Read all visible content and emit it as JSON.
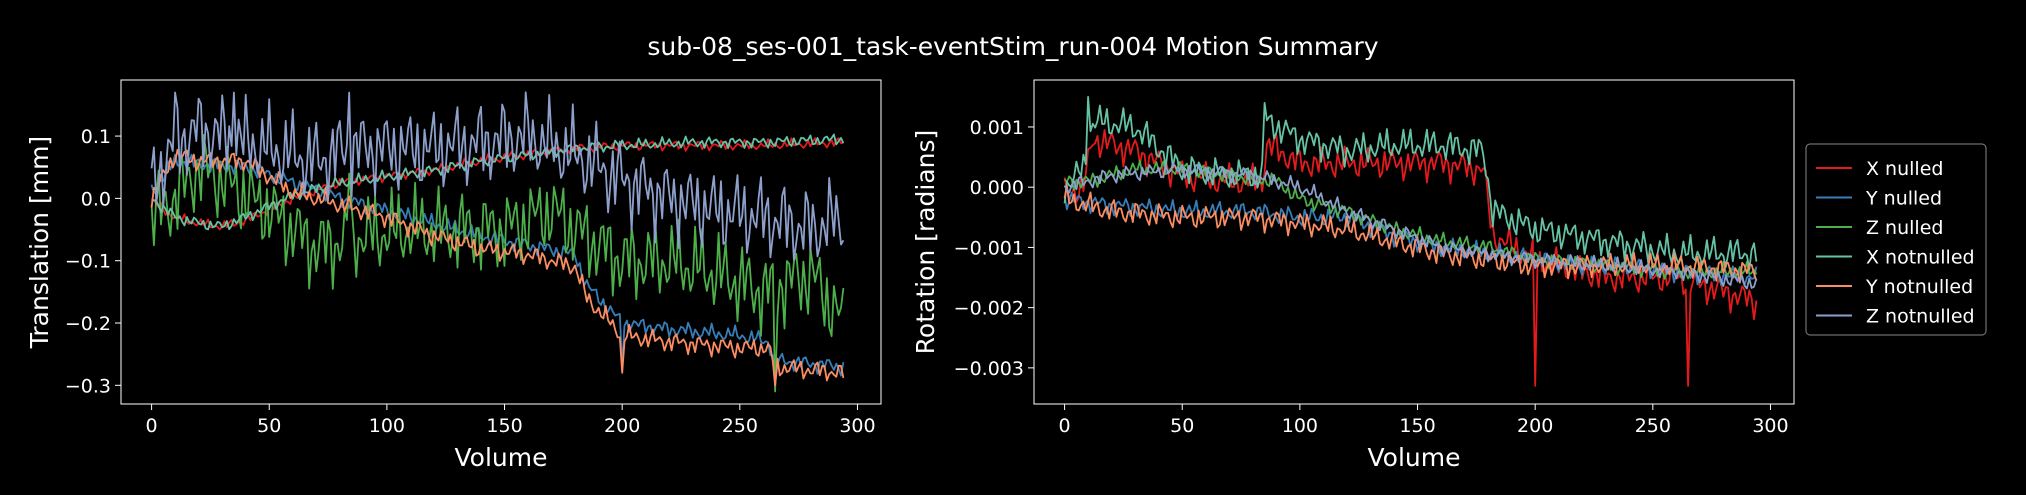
{
  "title": "sub-08_ses-001_task-eventStim_run-004 Motion Summary",
  "colors": {
    "background": "#000000",
    "axes": "#ffffff",
    "X nulled": "#e41a1c",
    "Y nulled": "#377eb8",
    "Z nulled": "#4daf4a",
    "X notnulled": "#66c2a5",
    "Y notnulled": "#fc8d62",
    "Z notnulled": "#8da0cb"
  },
  "legend": {
    "placement": "outside-right",
    "entries": [
      "X nulled",
      "Y nulled",
      "Z nulled",
      "X notnulled",
      "Y notnulled",
      "Z notnulled"
    ]
  },
  "chart_data": [
    {
      "type": "line",
      "xlabel": "Volume",
      "ylabel": "Translation [mm]",
      "xlim": [
        -13,
        310
      ],
      "ylim": [
        -0.33,
        0.19
      ],
      "xticks": [
        0,
        50,
        100,
        150,
        200,
        250,
        300
      ],
      "xtick_labels": [
        "0",
        "50",
        "100",
        "150",
        "200",
        "250",
        "300"
      ],
      "yticks": [
        0.1,
        0.0,
        -0.1,
        -0.2,
        -0.3
      ],
      "ytick_labels": [
        "0.1",
        "0.0",
        "−0.1",
        "−0.2",
        "−0.3"
      ],
      "n_volumes": 295,
      "grid": false,
      "series": [
        {
          "name": "X nulled",
          "color": "#e41a1c",
          "points": [
            [
              0,
              -0.005
            ],
            [
              10,
              -0.03
            ],
            [
              20,
              -0.04
            ],
            [
              30,
              -0.045
            ],
            [
              40,
              -0.035
            ],
            [
              60,
              0.0
            ],
            [
              80,
              0.025
            ],
            [
              100,
              0.035
            ],
            [
              120,
              0.045
            ],
            [
              140,
              0.06
            ],
            [
              160,
              0.07
            ],
            [
              180,
              0.08
            ],
            [
              200,
              0.085
            ],
            [
              230,
              0.085
            ],
            [
              260,
              0.085
            ],
            [
              294,
              0.09
            ]
          ],
          "amp": 0.006,
          "spikes": []
        },
        {
          "name": "Y nulled",
          "color": "#377eb8",
          "points": [
            [
              0,
              0.01
            ],
            [
              10,
              0.06
            ],
            [
              20,
              0.055
            ],
            [
              40,
              0.05
            ],
            [
              60,
              0.025
            ],
            [
              80,
              0.0
            ],
            [
              100,
              -0.02
            ],
            [
              120,
              -0.04
            ],
            [
              140,
              -0.06
            ],
            [
              160,
              -0.075
            ],
            [
              180,
              -0.09
            ],
            [
              185,
              -0.14
            ],
            [
              200,
              -0.2
            ],
            [
              220,
              -0.21
            ],
            [
              250,
              -0.22
            ],
            [
              262,
              -0.23
            ],
            [
              265,
              -0.26
            ],
            [
              294,
              -0.27
            ]
          ],
          "amp": 0.01,
          "spikes": [
            [
              200,
              -0.27
            ],
            [
              265,
              -0.3
            ]
          ]
        },
        {
          "name": "Z nulled",
          "color": "#4daf4a",
          "points": [
            [
              0,
              -0.03
            ],
            [
              10,
              0.0
            ],
            [
              20,
              0.05
            ],
            [
              30,
              0.03
            ],
            [
              50,
              -0.02
            ],
            [
              70,
              -0.08
            ],
            [
              90,
              -0.06
            ],
            [
              110,
              -0.05
            ],
            [
              130,
              -0.05
            ],
            [
              150,
              -0.05
            ],
            [
              170,
              -0.02
            ],
            [
              180,
              -0.05
            ],
            [
              200,
              -0.1
            ],
            [
              220,
              -0.1
            ],
            [
              240,
              -0.12
            ],
            [
              260,
              -0.15
            ],
            [
              280,
              -0.12
            ],
            [
              294,
              -0.2
            ]
          ],
          "amp": 0.05,
          "spikes": [
            [
              84,
              0.04
            ],
            [
              265,
              -0.31
            ]
          ]
        },
        {
          "name": "X notnulled",
          "color": "#66c2a5",
          "points": [
            [
              0,
              0.0
            ],
            [
              10,
              -0.03
            ],
            [
              20,
              -0.04
            ],
            [
              30,
              -0.045
            ],
            [
              40,
              -0.03
            ],
            [
              60,
              0.005
            ],
            [
              80,
              0.025
            ],
            [
              100,
              0.035
            ],
            [
              120,
              0.045
            ],
            [
              140,
              0.06
            ],
            [
              160,
              0.07
            ],
            [
              180,
              0.08
            ],
            [
              200,
              0.085
            ],
            [
              230,
              0.09
            ],
            [
              260,
              0.09
            ],
            [
              294,
              0.095
            ]
          ],
          "amp": 0.007,
          "spikes": []
        },
        {
          "name": "Y notnulled",
          "color": "#fc8d62",
          "points": [
            [
              0,
              0.0
            ],
            [
              10,
              0.07
            ],
            [
              20,
              0.06
            ],
            [
              40,
              0.06
            ],
            [
              60,
              0.01
            ],
            [
              80,
              -0.01
            ],
            [
              100,
              -0.03
            ],
            [
              120,
              -0.06
            ],
            [
              140,
              -0.08
            ],
            [
              160,
              -0.09
            ],
            [
              180,
              -0.11
            ],
            [
              185,
              -0.16
            ],
            [
              200,
              -0.22
            ],
            [
              220,
              -0.23
            ],
            [
              250,
              -0.24
            ],
            [
              262,
              -0.24
            ],
            [
              265,
              -0.27
            ],
            [
              294,
              -0.28
            ]
          ],
          "amp": 0.012,
          "spikes": [
            [
              200,
              -0.28
            ],
            [
              265,
              -0.3
            ]
          ]
        },
        {
          "name": "Z notnulled",
          "color": "#8da0cb",
          "points": [
            [
              0,
              0.02
            ],
            [
              10,
              0.09
            ],
            [
              20,
              0.11
            ],
            [
              30,
              0.1
            ],
            [
              50,
              0.08
            ],
            [
              70,
              0.06
            ],
            [
              84,
              0.08
            ],
            [
              100,
              0.08
            ],
            [
              120,
              0.08
            ],
            [
              140,
              0.09
            ],
            [
              160,
              0.1
            ],
            [
              180,
              0.07
            ],
            [
              200,
              0.03
            ],
            [
              220,
              0.0
            ],
            [
              240,
              -0.02
            ],
            [
              260,
              -0.03
            ],
            [
              280,
              -0.05
            ],
            [
              294,
              -0.03
            ]
          ],
          "amp": 0.05,
          "spikes": [
            [
              10,
              0.17
            ],
            [
              35,
              0.17
            ],
            [
              84,
              0.17
            ]
          ]
        }
      ]
    },
    {
      "type": "line",
      "xlabel": "Volume",
      "ylabel": "Rotation [radians]",
      "xlim": [
        -13,
        310
      ],
      "ylim": [
        -0.0036,
        0.00178
      ],
      "xticks": [
        0,
        50,
        100,
        150,
        200,
        250,
        300
      ],
      "xtick_labels": [
        "0",
        "50",
        "100",
        "150",
        "200",
        "250",
        "300"
      ],
      "yticks": [
        0.001,
        0.0,
        -0.001,
        -0.002,
        -0.003
      ],
      "ytick_labels": [
        "0.001",
        "0.000",
        "−0.001",
        "−0.002",
        "−0.003"
      ],
      "n_volumes": 295,
      "grid": false,
      "series": [
        {
          "name": "X nulled",
          "color": "#e41a1c",
          "points": [
            [
              0,
              -0.0001
            ],
            [
              8,
              0.0
            ],
            [
              12,
              0.0008
            ],
            [
              30,
              0.0006
            ],
            [
              50,
              0.0002
            ],
            [
              70,
              0.0001
            ],
            [
              84,
              0.0001
            ],
            [
              86,
              0.0007
            ],
            [
              100,
              0.0004
            ],
            [
              120,
              0.0004
            ],
            [
              140,
              0.0004
            ],
            [
              160,
              0.0004
            ],
            [
              178,
              0.0003
            ],
            [
              182,
              -0.0008
            ],
            [
              200,
              -0.0012
            ],
            [
              230,
              -0.0015
            ],
            [
              260,
              -0.0015
            ],
            [
              294,
              -0.0019
            ]
          ],
          "amp": 0.0002,
          "spikes": [
            [
              200,
              -0.0033
            ],
            [
              265,
              -0.0033
            ]
          ]
        },
        {
          "name": "Y nulled",
          "color": "#377eb8",
          "points": [
            [
              0,
              -0.0002
            ],
            [
              20,
              -0.0003
            ],
            [
              50,
              -0.0004
            ],
            [
              80,
              -0.0004
            ],
            [
              100,
              -0.0005
            ],
            [
              120,
              -0.0005
            ],
            [
              140,
              -0.0008
            ],
            [
              160,
              -0.001
            ],
            [
              180,
              -0.0011
            ],
            [
              200,
              -0.0012
            ],
            [
              220,
              -0.0013
            ],
            [
              240,
              -0.0013
            ],
            [
              260,
              -0.0014
            ],
            [
              294,
              -0.0015
            ]
          ],
          "amp": 0.00012,
          "spikes": []
        },
        {
          "name": "Z nulled",
          "color": "#4daf4a",
          "points": [
            [
              0,
              0.0001
            ],
            [
              10,
              0.0001
            ],
            [
              30,
              0.0003
            ],
            [
              50,
              0.0003
            ],
            [
              70,
              0.0002
            ],
            [
              90,
              0.0001
            ],
            [
              100,
              -0.0002
            ],
            [
              120,
              -0.0004
            ],
            [
              140,
              -0.0007
            ],
            [
              160,
              -0.0009
            ],
            [
              180,
              -0.001
            ],
            [
              200,
              -0.0012
            ],
            [
              230,
              -0.0013
            ],
            [
              260,
              -0.0014
            ],
            [
              294,
              -0.0014
            ]
          ],
          "amp": 0.0001,
          "spikes": []
        },
        {
          "name": "X notnulled",
          "color": "#66c2a5",
          "points": [
            [
              0,
              0.0
            ],
            [
              8,
              0.0003
            ],
            [
              12,
              0.0011
            ],
            [
              30,
              0.001
            ],
            [
              50,
              0.0003
            ],
            [
              70,
              0.0002
            ],
            [
              84,
              0.0002
            ],
            [
              86,
              0.0011
            ],
            [
              100,
              0.0008
            ],
            [
              120,
              0.0006
            ],
            [
              140,
              0.0007
            ],
            [
              160,
              0.0007
            ],
            [
              178,
              0.0006
            ],
            [
              182,
              -0.0004
            ],
            [
              200,
              -0.0007
            ],
            [
              230,
              -0.0009
            ],
            [
              260,
              -0.0011
            ],
            [
              294,
              -0.0011
            ]
          ],
          "amp": 0.0002,
          "spikes": [
            [
              10,
              0.0015
            ],
            [
              85,
              0.0014
            ]
          ]
        },
        {
          "name": "Y notnulled",
          "color": "#fc8d62",
          "points": [
            [
              0,
              -0.0002
            ],
            [
              20,
              -0.0004
            ],
            [
              50,
              -0.0005
            ],
            [
              80,
              -0.0005
            ],
            [
              100,
              -0.0006
            ],
            [
              120,
              -0.0007
            ],
            [
              140,
              -0.0009
            ],
            [
              160,
              -0.0011
            ],
            [
              180,
              -0.0012
            ],
            [
              200,
              -0.0013
            ],
            [
              230,
              -0.0013
            ],
            [
              260,
              -0.0013
            ],
            [
              294,
              -0.0014
            ]
          ],
          "amp": 0.00015,
          "spikes": []
        },
        {
          "name": "Z notnulled",
          "color": "#8da0cb",
          "points": [
            [
              0,
              0.0
            ],
            [
              20,
              0.0002
            ],
            [
              50,
              0.0003
            ],
            [
              80,
              0.0002
            ],
            [
              100,
              0.0
            ],
            [
              120,
              -0.0004
            ],
            [
              140,
              -0.0007
            ],
            [
              160,
              -0.001
            ],
            [
              180,
              -0.0011
            ],
            [
              200,
              -0.0012
            ],
            [
              230,
              -0.0013
            ],
            [
              260,
              -0.0014
            ],
            [
              294,
              -0.0016
            ]
          ],
          "amp": 0.0001,
          "spikes": []
        }
      ]
    }
  ]
}
